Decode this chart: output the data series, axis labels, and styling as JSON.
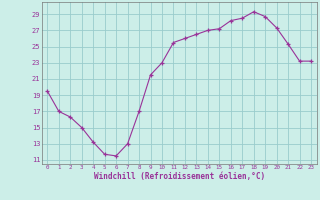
{
  "x": [
    0,
    1,
    2,
    3,
    4,
    5,
    6,
    7,
    8,
    9,
    10,
    11,
    12,
    13,
    14,
    15,
    16,
    17,
    18,
    19,
    20,
    21,
    22,
    23
  ],
  "y": [
    19.5,
    17.0,
    16.3,
    15.0,
    13.2,
    11.7,
    11.5,
    13.0,
    17.0,
    21.5,
    23.0,
    25.5,
    26.0,
    26.5,
    27.0,
    27.2,
    28.2,
    28.5,
    29.3,
    28.7,
    27.3,
    25.3,
    23.2,
    23.2
  ],
  "line_color": "#993399",
  "marker": "+",
  "bg_color": "#cceee8",
  "grid_color": "#99cccc",
  "xlabel": "Windchill (Refroidissement éolien,°C)",
  "ylim": [
    10.5,
    30.5
  ],
  "xlim": [
    -0.5,
    23.5
  ],
  "yticks": [
    11,
    13,
    15,
    17,
    19,
    21,
    23,
    25,
    27,
    29
  ],
  "xticks": [
    0,
    1,
    2,
    3,
    4,
    5,
    6,
    7,
    8,
    9,
    10,
    11,
    12,
    13,
    14,
    15,
    16,
    17,
    18,
    19,
    20,
    21,
    22,
    23
  ],
  "tick_color": "#993399",
  "label_color": "#993399"
}
